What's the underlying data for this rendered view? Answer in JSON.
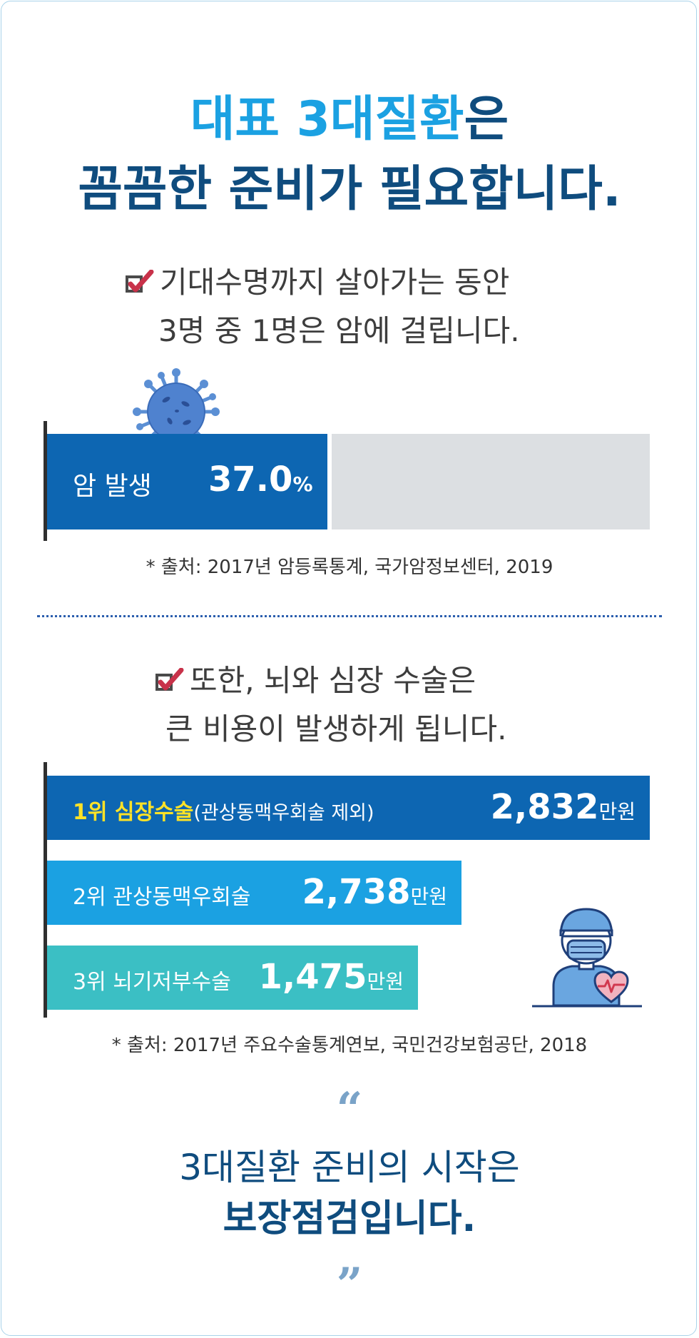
{
  "headline": {
    "line1_accent": "대표 3대질환",
    "line1_rest": "은",
    "line2": "꼼꼼한 준비가 필요합니다."
  },
  "section1": {
    "statement_line1": "기대수명까지 살아가는 동안",
    "statement_line2": "3명 중 1명은 암에 걸립니다.",
    "bar_label": "암 발생",
    "bar_value": "37.0",
    "bar_unit": "%",
    "bar_fraction": 0.37,
    "source": "* 출처: 2017년 암등록통계, 국가암정보센터, 2019"
  },
  "section2": {
    "statement_line1": "또한, 뇌와 심장 수술은",
    "statement_line2": "큰 비용이 발생하게 됩니다.",
    "items": [
      {
        "rank_label": "1위 심장수술",
        "sub_label": "(관상동맥우회술 제외)",
        "value": "2,832",
        "unit": "만원",
        "color": "#0d66b2"
      },
      {
        "rank_label": "2위 관상동맥우회술",
        "sub_label": "",
        "value": "2,738",
        "unit": "만원",
        "color": "#1ba1e2"
      },
      {
        "rank_label": "3위 뇌기저부수술",
        "sub_label": "",
        "value": "1,475",
        "unit": "만원",
        "color": "#3bbfc4"
      }
    ],
    "source": "* 출처: 2017년 주요수술통계연보, 국민건강보험공단, 2018"
  },
  "quote": {
    "open_mark": "“",
    "close_mark": "”",
    "line1": "3대질환 준비의 시작은",
    "line2": "보장점검입니다."
  },
  "icons": [
    "checkbox-check-icon",
    "virus-icon",
    "doctor-icon",
    "heart-pulse-icon"
  ],
  "colors": {
    "navy": "#0f4c7e",
    "accent_blue": "#1ba1e2",
    "bar_blue": "#0d66b2",
    "bar_teal": "#3bbfc4",
    "highlight_yellow": "#ffe227",
    "check_red": "#c8324a"
  }
}
